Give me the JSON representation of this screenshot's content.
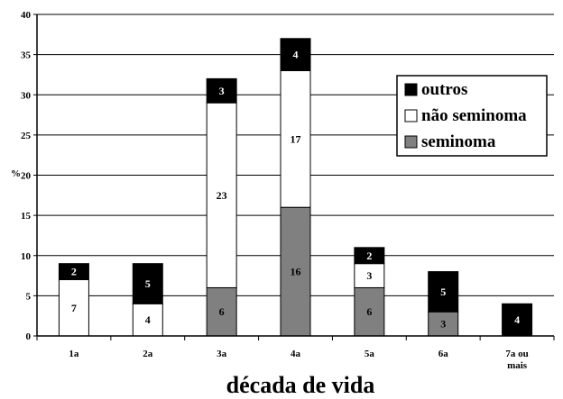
{
  "chart_data": {
    "type": "bar",
    "stacked": true,
    "title": "",
    "xlabel": "década  de vida",
    "ylabel": "%",
    "ylim": [
      0,
      40
    ],
    "yticks": [
      0,
      5,
      10,
      15,
      20,
      25,
      30,
      35,
      40
    ],
    "grid": true,
    "legend_position": "right",
    "categories": [
      "1a",
      "2a",
      "3a",
      "4a",
      "5a",
      "6a",
      "7a ou mais"
    ],
    "category_labels": [
      [
        "1a"
      ],
      [
        "2a"
      ],
      [
        "3a"
      ],
      [
        "4a"
      ],
      [
        "5a"
      ],
      [
        "6a"
      ],
      [
        "7a ou",
        "mais"
      ]
    ],
    "series": [
      {
        "name": "seminoma",
        "color": "#808080",
        "label_color": "#000000",
        "values": [
          0,
          0,
          6,
          16,
          6,
          3,
          0
        ]
      },
      {
        "name": "não seminoma",
        "color": "#ffffff",
        "label_color": "#000000",
        "values": [
          7,
          4,
          23,
          17,
          3,
          0,
          0
        ]
      },
      {
        "name": "outros",
        "color": "#000000",
        "label_color": "#ffffff",
        "values": [
          2,
          5,
          3,
          4,
          2,
          5,
          4
        ]
      }
    ],
    "legend_order": [
      "outros",
      "não seminoma",
      "seminoma"
    ]
  }
}
